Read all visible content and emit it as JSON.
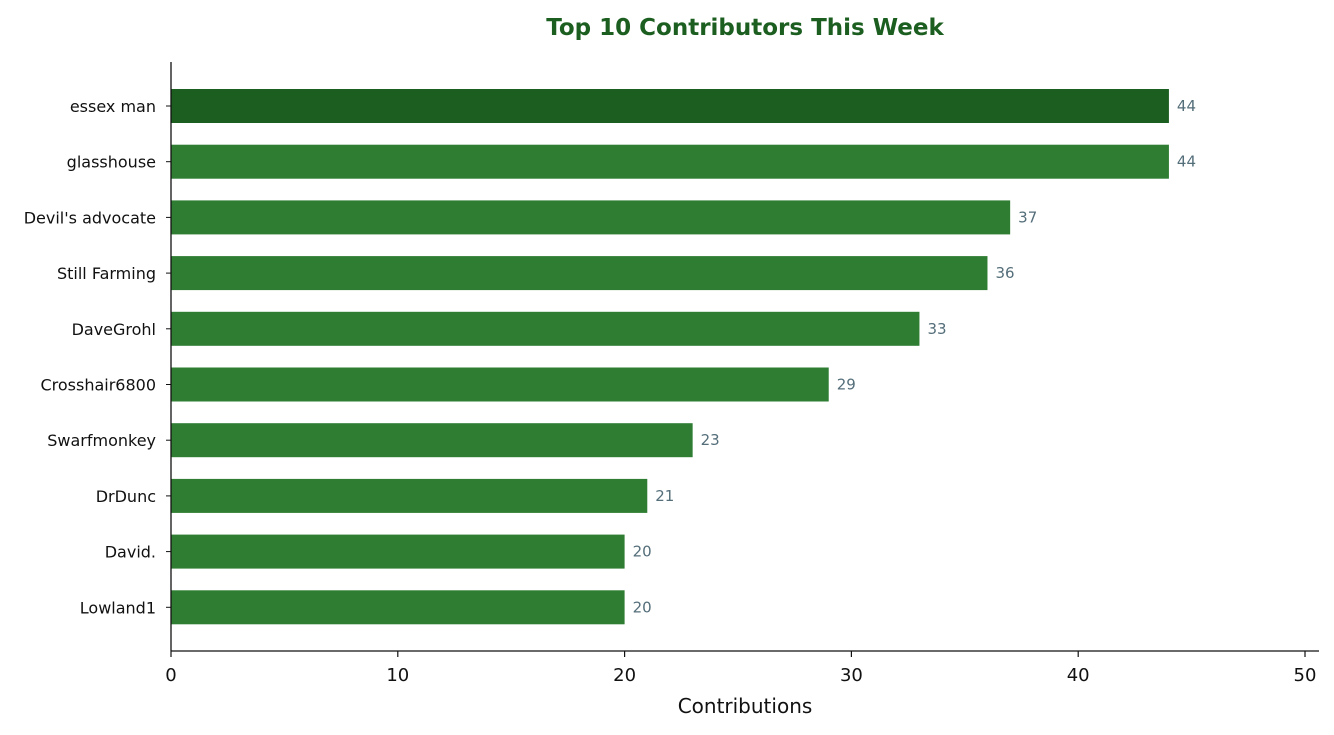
{
  "chart_data": {
    "type": "bar",
    "orientation": "horizontal",
    "title": "Top 10 Contributors This Week",
    "xlabel": "Contributions",
    "ylabel": "",
    "categories": [
      "essex man",
      "glasshouse",
      "Devil's advocate",
      "Still Farming",
      "DaveGrohl",
      "Crosshair6800",
      "Swarfmonkey",
      "DrDunc",
      "David.",
      "Lowland1"
    ],
    "values": [
      44,
      44,
      37,
      36,
      33,
      29,
      23,
      21,
      20,
      20
    ],
    "xlim": [
      0,
      50
    ],
    "x_ticks": [
      0,
      10,
      20,
      30,
      40,
      50
    ],
    "grid": false,
    "legend": "none",
    "data_labels": true,
    "highlighted_category": "essex man"
  },
  "colors": {
    "title": "#1b5e20",
    "bar": "#2e7d32",
    "bar_highlight": "#1b5e20",
    "value_label": "#546e7a",
    "axis": "#111111",
    "background": "#ffffff"
  }
}
